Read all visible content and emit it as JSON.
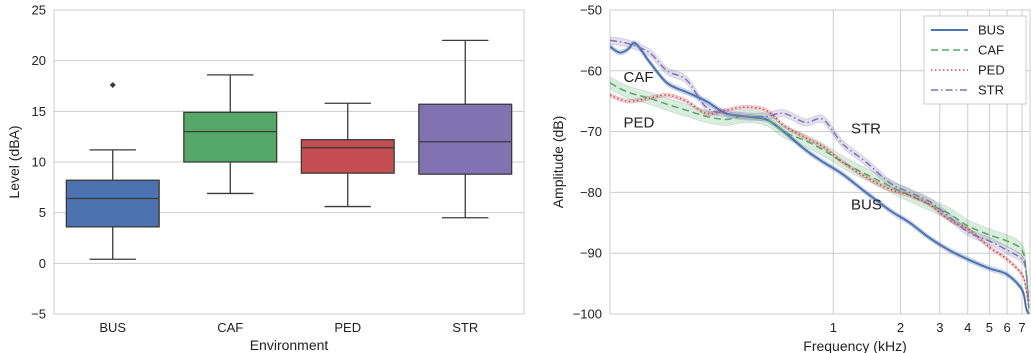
{
  "colors": {
    "BUS": "#4c72b0",
    "CAF": "#55a868",
    "PED": "#c44e52",
    "STR": "#8172b2",
    "grid": "#cccccc",
    "box_edge": "#3a3a3a"
  },
  "chart_data": [
    {
      "type": "box",
      "xlabel": "Environment",
      "ylabel": "Level (dBA)",
      "ylim": [
        -5,
        25
      ],
      "yticks": [
        "−5",
        "0",
        "5",
        "10",
        "15",
        "20",
        "25"
      ],
      "yticks_values": [
        -5,
        0,
        5,
        10,
        15,
        20,
        25
      ],
      "grid": true,
      "categories": [
        "BUS",
        "CAF",
        "PED",
        "STR"
      ],
      "boxes": [
        {
          "name": "BUS",
          "whisker_low": 0.4,
          "q1": 3.6,
          "median": 6.4,
          "q3": 8.2,
          "whisker_high": 11.2,
          "outliers": [
            17.6
          ]
        },
        {
          "name": "CAF",
          "whisker_low": 6.9,
          "q1": 10.0,
          "median": 13.0,
          "q3": 14.9,
          "whisker_high": 18.6,
          "outliers": []
        },
        {
          "name": "PED",
          "whisker_low": 5.6,
          "q1": 8.9,
          "median": 11.4,
          "q3": 12.2,
          "whisker_high": 15.8,
          "outliers": []
        },
        {
          "name": "STR",
          "whisker_low": 4.5,
          "q1": 8.8,
          "median": 12.0,
          "q3": 15.7,
          "whisker_high": 22.0,
          "outliers": []
        }
      ]
    },
    {
      "type": "line",
      "xlabel": "Frequency (kHz)",
      "ylabel": "Amplitude (dB)",
      "xscale": "log",
      "xlim": [
        0.1,
        7.6
      ],
      "ylim": [
        -100,
        -50
      ],
      "xticks": [
        "1",
        "2",
        "3",
        "4",
        "5",
        "6",
        "7"
      ],
      "xticks_values": [
        1,
        2,
        3,
        4,
        5,
        6,
        7
      ],
      "yticks": [
        "−100",
        "−90",
        "−80",
        "−70",
        "−60",
        "−50"
      ],
      "yticks_values": [
        -100,
        -90,
        -80,
        -70,
        -60,
        -50
      ],
      "grid": true,
      "legend_position": "top-right",
      "series": [
        {
          "name": "BUS",
          "style": "solid",
          "band": 0.4,
          "x": [
            0.1,
            0.11,
            0.12,
            0.13,
            0.15,
            0.18,
            0.22,
            0.27,
            0.33,
            0.4,
            0.5,
            0.6,
            0.75,
            0.9,
            1.1,
            1.4,
            1.8,
            2.2,
            2.7,
            3.3,
            4.0,
            5.0,
            6.0,
            7.0,
            7.3,
            7.5
          ],
          "y": [
            -56,
            -57,
            -56.5,
            -55.5,
            -58.5,
            -62,
            -63.5,
            -65,
            -67,
            -67.5,
            -68,
            -70,
            -73,
            -75,
            -77,
            -80,
            -83,
            -85,
            -87.5,
            -89.5,
            -91,
            -92.5,
            -93.5,
            -96,
            -99,
            -100
          ]
        },
        {
          "name": "CAF",
          "style": "dashed",
          "band": 1.0,
          "x": [
            0.1,
            0.12,
            0.15,
            0.18,
            0.22,
            0.27,
            0.33,
            0.4,
            0.5,
            0.6,
            0.75,
            0.9,
            1.1,
            1.4,
            1.8,
            2.2,
            2.7,
            3.3,
            4.0,
            5.0,
            6.0,
            7.0,
            7.3,
            7.5
          ],
          "y": [
            -62,
            -63.5,
            -64.5,
            -65.5,
            -66.5,
            -67.5,
            -68,
            -67.5,
            -68,
            -70,
            -71.5,
            -73,
            -75,
            -77,
            -79,
            -80.5,
            -82,
            -83.5,
            -85.5,
            -87,
            -88,
            -89.5,
            -93,
            -99
          ]
        },
        {
          "name": "PED",
          "style": "dotted",
          "band": 0.3,
          "x": [
            0.1,
            0.12,
            0.15,
            0.18,
            0.22,
            0.27,
            0.33,
            0.4,
            0.5,
            0.6,
            0.75,
            0.9,
            1.1,
            1.4,
            1.8,
            2.2,
            2.7,
            3.3,
            4.0,
            5.0,
            6.0,
            7.0,
            7.3,
            7.5
          ],
          "y": [
            -64,
            -65,
            -64.5,
            -64,
            -65,
            -67,
            -66.5,
            -66,
            -66.5,
            -69,
            -71,
            -72.5,
            -75,
            -77.5,
            -79.5,
            -80.5,
            -82,
            -84.5,
            -86,
            -89,
            -91,
            -93.5,
            -96,
            -99
          ]
        },
        {
          "name": "STR",
          "style": "dashdot",
          "band": 0.6,
          "x": [
            0.1,
            0.12,
            0.15,
            0.18,
            0.22,
            0.27,
            0.33,
            0.4,
            0.5,
            0.6,
            0.75,
            0.9,
            1.1,
            1.4,
            1.8,
            2.2,
            2.7,
            3.3,
            4.0,
            5.0,
            6.0,
            7.0,
            7.3,
            7.5
          ],
          "y": [
            -55,
            -55.5,
            -57,
            -60,
            -61.5,
            -66,
            -67,
            -67.5,
            -67.5,
            -67,
            -68.5,
            -68,
            -72,
            -75,
            -78.5,
            -80,
            -81.5,
            -84,
            -86.5,
            -88,
            -89.5,
            -91,
            -93,
            -98
          ]
        }
      ],
      "annotations": [
        {
          "text": "CAF",
          "x": 0.115,
          "y": -61
        },
        {
          "text": "PED",
          "x": 0.115,
          "y": -68.5
        },
        {
          "text": "STR",
          "x": 1.2,
          "y": -69.5
        },
        {
          "text": "BUS",
          "x": 1.2,
          "y": -82
        }
      ]
    }
  ]
}
